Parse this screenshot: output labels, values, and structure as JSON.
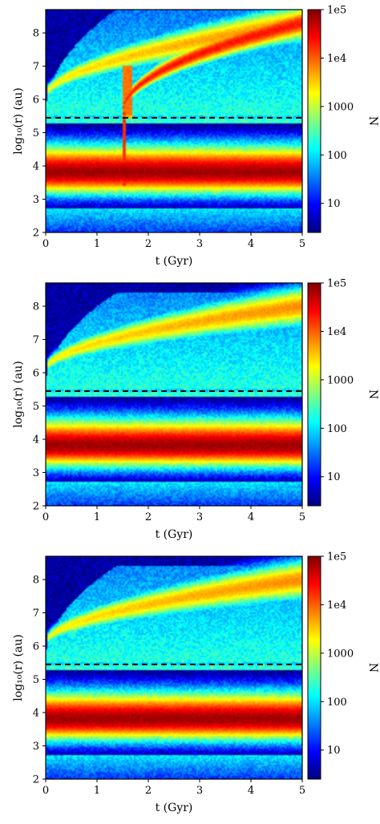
{
  "colors": {
    "colormap": [
      "#00007f",
      "#0000ff",
      "#0080ff",
      "#00ffff",
      "#80ff80",
      "#ffff00",
      "#ff8000",
      "#ff0000",
      "#7f0000"
    ],
    "dashed_line": "#000000",
    "axes": "#000000"
  },
  "chart_data": [
    {
      "type": "heatmap",
      "xlabel": "t (Gyr)",
      "ylabel": "log₁₀(r) (au)",
      "colorbar_label": "N",
      "x_ticks": [
        "0",
        "1",
        "2",
        "3",
        "4",
        "5"
      ],
      "y_ticks": [
        "2",
        "3",
        "4",
        "5",
        "6",
        "7",
        "8"
      ],
      "colorbar_ticks": [
        "10",
        "100",
        "1000",
        "1e4",
        "1e5"
      ],
      "xlim": [
        0,
        5
      ],
      "ylim": [
        2,
        8.7
      ],
      "colorbar_range_log10": [
        0.4,
        5.0
      ],
      "colorbar_scale": "log",
      "dashed_line_y": 5.45,
      "inner_cloud_peak_log10r": 3.8,
      "perturbation_event_t": 1.5,
      "outer_stream_end_log10r": 8.3
    },
    {
      "type": "heatmap",
      "xlabel": "t (Gyr)",
      "ylabel": "log₁₀(r) (au)",
      "colorbar_label": "N",
      "x_ticks": [
        "0",
        "1",
        "2",
        "3",
        "4",
        "5"
      ],
      "y_ticks": [
        "2",
        "3",
        "4",
        "5",
        "6",
        "7",
        "8"
      ],
      "colorbar_ticks": [
        "10",
        "100",
        "1000",
        "1e4",
        "1e5"
      ],
      "xlim": [
        0,
        5
      ],
      "ylim": [
        2,
        8.7
      ],
      "colorbar_range_log10": [
        0.4,
        5.0
      ],
      "colorbar_scale": "log",
      "dashed_line_y": 5.45,
      "inner_cloud_peak_log10r": 3.8,
      "outer_stream_end_log10r": 8.0
    },
    {
      "type": "heatmap",
      "xlabel": "t (Gyr)",
      "ylabel": "log₁₀(r) (au)",
      "colorbar_label": "N",
      "x_ticks": [
        "0",
        "1",
        "2",
        "3",
        "4",
        "5"
      ],
      "y_ticks": [
        "2",
        "3",
        "4",
        "5",
        "6",
        "7",
        "8"
      ],
      "colorbar_ticks": [
        "10",
        "100",
        "1000",
        "1e4",
        "1e5"
      ],
      "xlim": [
        0,
        5
      ],
      "ylim": [
        2,
        8.7
      ],
      "colorbar_range_log10": [
        0.4,
        5.0
      ],
      "colorbar_scale": "log",
      "dashed_line_y": 5.45,
      "inner_cloud_peak_log10r": 3.8,
      "outer_stream_end_log10r": 8.0
    }
  ]
}
